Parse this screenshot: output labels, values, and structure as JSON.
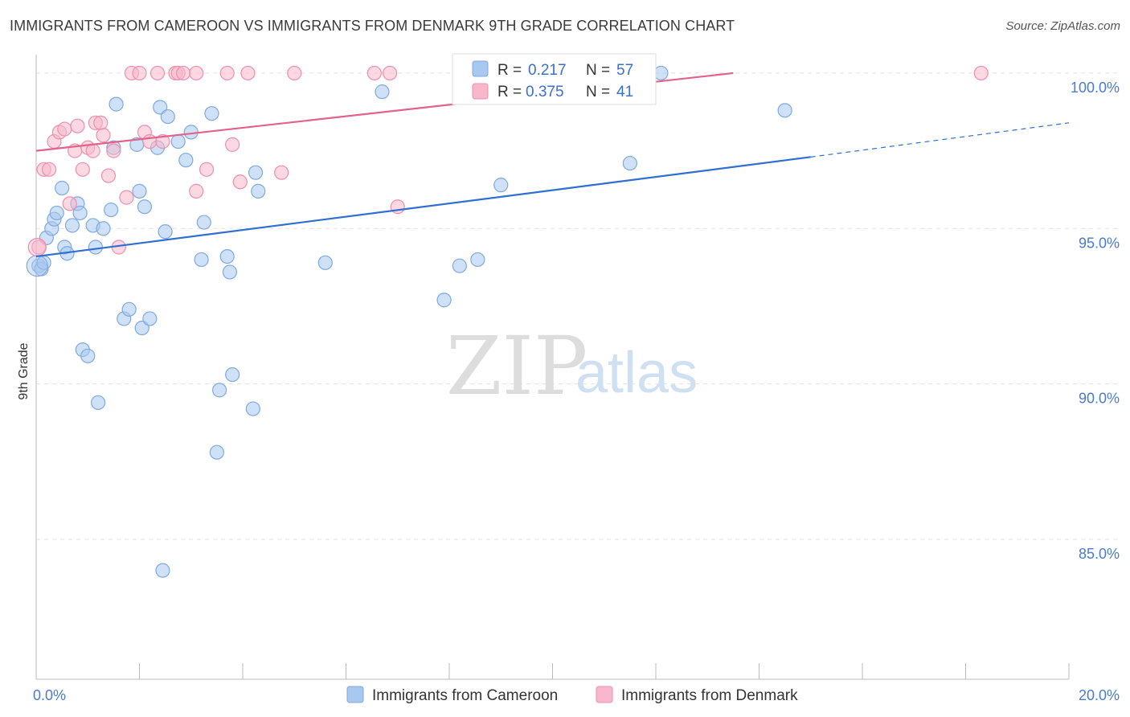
{
  "header": {
    "title": "IMMIGRANTS FROM CAMEROON VS IMMIGRANTS FROM DENMARK 9TH GRADE CORRELATION CHART",
    "source": "Source: ZipAtlas.com"
  },
  "watermark": {
    "zip": "ZIP",
    "atlas": "atlas"
  },
  "legend": {
    "rows": [
      {
        "r_label": "R =",
        "r_value": "0.217",
        "n_label": "N =",
        "n_value": "57",
        "color": "#a8c8f0",
        "stroke": "#7fa9e0"
      },
      {
        "r_label": "R =",
        "r_value": "0.375",
        "n_label": "N =",
        "n_value": "41",
        "color": "#f7b8cb",
        "stroke": "#ee8fae"
      }
    ]
  },
  "bottom_legend": [
    {
      "label": "Immigrants from Cameroon",
      "color": "#a8c8f0",
      "stroke": "#7fa9e0"
    },
    {
      "label": "Immigrants from Denmark",
      "color": "#f7b8cb",
      "stroke": "#ee8fae"
    }
  ],
  "chart_data": {
    "type": "scatter",
    "title": "IMMIGRANTS FROM CAMEROON VS IMMIGRANTS FROM DENMARK 9TH GRADE CORRELATION CHART",
    "xlabel": "",
    "ylabel": "9th Grade",
    "xlim": [
      0,
      20
    ],
    "ylim": [
      80.5,
      100.8
    ],
    "x_tick_labels": [
      {
        "value": 0,
        "label": "0.0%"
      },
      {
        "value": 20,
        "label": "20.0%"
      }
    ],
    "x_minor_ticks": [
      0,
      2,
      4,
      6,
      8,
      10,
      12,
      14,
      16,
      18,
      20
    ],
    "y_ticks": [
      {
        "value": 100,
        "label": "100.0%"
      },
      {
        "value": 95,
        "label": "95.0%"
      },
      {
        "value": 90,
        "label": "90.0%"
      },
      {
        "value": 85,
        "label": "85.0%"
      }
    ],
    "grid": true,
    "series": [
      {
        "name": "Immigrants from Cameroon",
        "color": "#a8c8f0",
        "stroke": "#7fa9e0",
        "trend": {
          "x0": 0,
          "y0": 94.1,
          "x1": 15,
          "y1": 97.3,
          "dash_to_x": 20,
          "dash_to_y": 98.4,
          "color": "#2f6fd0"
        },
        "points": [
          [
            0.05,
            93.8
          ],
          [
            0.1,
            93.7
          ],
          [
            0.2,
            94.7
          ],
          [
            0.3,
            95.0
          ],
          [
            0.35,
            95.3
          ],
          [
            0.4,
            95.5
          ],
          [
            0.5,
            96.3
          ],
          [
            0.55,
            94.4
          ],
          [
            0.6,
            94.2
          ],
          [
            0.7,
            95.1
          ],
          [
            0.8,
            95.8
          ],
          [
            0.85,
            95.5
          ],
          [
            0.9,
            91.1
          ],
          [
            1.0,
            90.9
          ],
          [
            1.1,
            95.1
          ],
          [
            1.15,
            94.4
          ],
          [
            1.2,
            89.4
          ],
          [
            1.3,
            95.0
          ],
          [
            1.45,
            95.6
          ],
          [
            1.5,
            97.6
          ],
          [
            1.55,
            99.0
          ],
          [
            1.7,
            92.1
          ],
          [
            1.8,
            92.4
          ],
          [
            1.95,
            97.7
          ],
          [
            2.0,
            96.2
          ],
          [
            2.05,
            91.8
          ],
          [
            2.1,
            95.7
          ],
          [
            2.2,
            92.1
          ],
          [
            2.35,
            97.6
          ],
          [
            2.4,
            98.9
          ],
          [
            2.45,
            84.0
          ],
          [
            2.5,
            94.9
          ],
          [
            2.55,
            98.6
          ],
          [
            2.75,
            97.8
          ],
          [
            2.9,
            97.2
          ],
          [
            3.0,
            98.1
          ],
          [
            3.2,
            94.0
          ],
          [
            3.25,
            95.2
          ],
          [
            3.4,
            98.7
          ],
          [
            3.5,
            87.8
          ],
          [
            3.55,
            89.8
          ],
          [
            3.7,
            94.1
          ],
          [
            3.75,
            93.6
          ],
          [
            3.8,
            90.3
          ],
          [
            4.2,
            89.2
          ],
          [
            4.25,
            96.8
          ],
          [
            4.3,
            96.2
          ],
          [
            5.6,
            93.9
          ],
          [
            6.7,
            99.4
          ],
          [
            7.9,
            92.7
          ],
          [
            8.2,
            93.8
          ],
          [
            8.55,
            94.0
          ],
          [
            9.0,
            96.4
          ],
          [
            11.5,
            97.1
          ],
          [
            12.1,
            100.0
          ],
          [
            14.5,
            98.8
          ],
          [
            0.15,
            93.9
          ]
        ]
      },
      {
        "name": "Immigrants from Denmark",
        "color": "#f7b8cb",
        "stroke": "#ee8fae",
        "trend": {
          "x0": 0,
          "y0": 97.5,
          "x1": 13.5,
          "y1": 100.0,
          "color": "#e2628c"
        },
        "points": [
          [
            0.05,
            94.4
          ],
          [
            0.15,
            96.9
          ],
          [
            0.25,
            96.9
          ],
          [
            0.35,
            97.8
          ],
          [
            0.45,
            98.1
          ],
          [
            0.55,
            98.2
          ],
          [
            0.65,
            95.8
          ],
          [
            0.75,
            97.5
          ],
          [
            0.8,
            98.3
          ],
          [
            0.9,
            96.9
          ],
          [
            1.0,
            97.6
          ],
          [
            1.1,
            97.5
          ],
          [
            1.15,
            98.4
          ],
          [
            1.25,
            98.4
          ],
          [
            1.3,
            98.0
          ],
          [
            1.4,
            96.7
          ],
          [
            1.5,
            97.5
          ],
          [
            1.6,
            94.4
          ],
          [
            1.75,
            96.0
          ],
          [
            1.85,
            100.0
          ],
          [
            2.0,
            100.0
          ],
          [
            2.1,
            98.1
          ],
          [
            2.2,
            97.8
          ],
          [
            2.35,
            100.0
          ],
          [
            2.45,
            97.8
          ],
          [
            2.7,
            100.0
          ],
          [
            2.75,
            100.0
          ],
          [
            2.85,
            100.0
          ],
          [
            3.1,
            100.0
          ],
          [
            3.1,
            96.2
          ],
          [
            3.3,
            96.9
          ],
          [
            3.7,
            100.0
          ],
          [
            3.8,
            97.7
          ],
          [
            3.95,
            96.5
          ],
          [
            4.1,
            100.0
          ],
          [
            4.75,
            96.8
          ],
          [
            5.0,
            100.0
          ],
          [
            6.55,
            100.0
          ],
          [
            6.85,
            100.0
          ],
          [
            7.0,
            95.7
          ],
          [
            18.3,
            100.0
          ]
        ]
      }
    ]
  }
}
